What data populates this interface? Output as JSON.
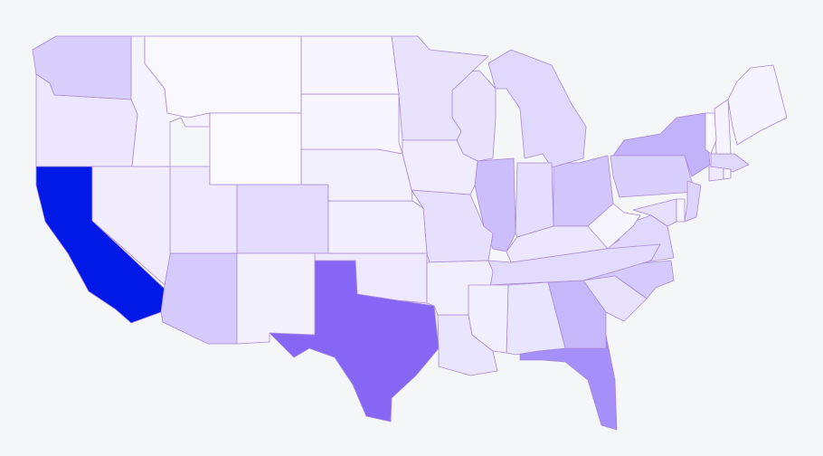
{
  "map": {
    "type": "choropleth",
    "region": "United States",
    "scale_colors": {
      "min": "#fbfaff",
      "max": "#0019e6",
      "border": "#a98ad6",
      "background": "#f5f6f8"
    },
    "states": [
      {
        "id": "CA",
        "level": 1.0
      },
      {
        "id": "TX",
        "level": 0.62
      },
      {
        "id": "FL",
        "level": 0.45
      },
      {
        "id": "NY",
        "level": 0.3
      },
      {
        "id": "GA",
        "level": 0.28
      },
      {
        "id": "IL",
        "level": 0.25
      },
      {
        "id": "OH",
        "level": 0.22
      },
      {
        "id": "AZ",
        "level": 0.2
      },
      {
        "id": "NC",
        "level": 0.2
      },
      {
        "id": "PA",
        "level": 0.18
      },
      {
        "id": "WA",
        "level": 0.18
      },
      {
        "id": "MI",
        "level": 0.14
      },
      {
        "id": "NJ",
        "level": 0.16
      },
      {
        "id": "VA",
        "level": 0.14
      },
      {
        "id": "MA",
        "level": 0.14
      },
      {
        "id": "CO",
        "level": 0.13
      },
      {
        "id": "TN",
        "level": 0.13
      },
      {
        "id": "IN",
        "level": 0.12
      },
      {
        "id": "MO",
        "level": 0.11
      },
      {
        "id": "MD",
        "level": 0.11
      },
      {
        "id": "WI",
        "level": 0.1
      },
      {
        "id": "MN",
        "level": 0.1
      },
      {
        "id": "SC",
        "level": 0.1
      },
      {
        "id": "AL",
        "level": 0.09
      },
      {
        "id": "LA",
        "level": 0.09
      },
      {
        "id": "KY",
        "level": 0.08
      },
      {
        "id": "OR",
        "level": 0.08
      },
      {
        "id": "OK",
        "level": 0.07
      },
      {
        "id": "CT",
        "level": 0.07
      },
      {
        "id": "UT",
        "level": 0.07
      },
      {
        "id": "IA",
        "level": 0.06
      },
      {
        "id": "NV",
        "level": 0.06
      },
      {
        "id": "AR",
        "level": 0.05
      },
      {
        "id": "MS",
        "level": 0.05
      },
      {
        "id": "KS",
        "level": 0.05
      },
      {
        "id": "NM",
        "level": 0.04
      },
      {
        "id": "NE",
        "level": 0.04
      },
      {
        "id": "ID",
        "level": 0.03
      },
      {
        "id": "WV",
        "level": 0.02
      },
      {
        "id": "NH",
        "level": 0.03
      },
      {
        "id": "ME",
        "level": 0.03
      },
      {
        "id": "RI",
        "level": 0.03
      },
      {
        "id": "DE",
        "level": 0.03
      },
      {
        "id": "VT",
        "level": 0.01
      },
      {
        "id": "SD",
        "level": 0.02
      },
      {
        "id": "ND",
        "level": 0.02
      },
      {
        "id": "MT",
        "level": 0.01
      },
      {
        "id": "WY",
        "level": 0.0
      }
    ]
  }
}
